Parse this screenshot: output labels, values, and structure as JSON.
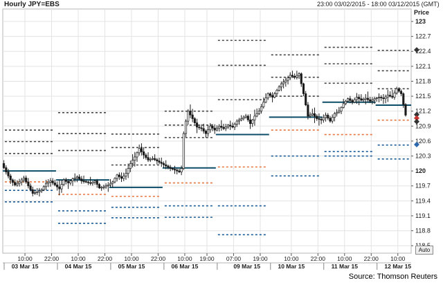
{
  "header": {
    "title": "Hourly JPY=EBS",
    "range": "23:00 03/02/2015 - 18:00 03/12/2015 (GMT)"
  },
  "price_axis_label": "Price",
  "auto_label": "Auto",
  "source": "Source: Thomson Reuters",
  "colors": {
    "background": "#ffffff",
    "grid": "#e3e3e3",
    "candle": "#1a1a1a",
    "pivot": "#0b4d66",
    "resistance": "#444444",
    "support_blue": "#1b5c96",
    "support_orange": "#e8743b",
    "marker_red": "#c9332c",
    "marker_blue": "#2b68ae",
    "marker_dark": "#333333"
  },
  "chart_data": {
    "type": "line",
    "series_style": "hourly candlestick with daily pivot-point levels",
    "title": "Hourly JPY=EBS",
    "ylabel": "Price",
    "ylim": [
      118.35,
      123.25
    ],
    "grid": true,
    "y_ticks": [
      "118.5",
      "118.8",
      "119.1",
      "119.4",
      "119.7",
      "120",
      "120.3",
      "120.6",
      "120.9",
      "121.2",
      "121.5",
      "121.8",
      "122.1",
      "122.4",
      "122.7",
      "123"
    ],
    "y_ticks_bold": [
      "120",
      "123"
    ],
    "x_ticks": [
      {
        "h": 10,
        "label": "10:00"
      },
      {
        "h": 22,
        "label": "22:00"
      },
      {
        "h": 34,
        "label": "10:00"
      },
      {
        "h": 46,
        "label": "22:00"
      },
      {
        "h": 58,
        "label": "10:00"
      },
      {
        "h": 70,
        "label": "22:00"
      },
      {
        "h": 82,
        "label": "10:00"
      },
      {
        "h": 92,
        "label": "19:00"
      },
      {
        "h": 104,
        "label": "07:00"
      },
      {
        "h": 116,
        "label": "19:00"
      },
      {
        "h": 130,
        "label": "10:00"
      },
      {
        "h": 142,
        "label": "22:00"
      },
      {
        "h": 154,
        "label": "10:00"
      },
      {
        "h": 166,
        "label": "22:00"
      },
      {
        "h": 178,
        "label": "10:00"
      }
    ],
    "day_labels": [
      {
        "h": 10,
        "label": "03 Mar 15"
      },
      {
        "h": 34,
        "label": "04 Mar 15"
      },
      {
        "h": 58,
        "label": "05 Mar 15"
      },
      {
        "h": 82,
        "label": "06 Mar 15"
      },
      {
        "h": 110,
        "label": "09 Mar 15"
      },
      {
        "h": 130,
        "label": "10 Mar 15"
      },
      {
        "h": 154,
        "label": "11 Mar 15"
      },
      {
        "h": 178,
        "label": "12 Mar 15"
      }
    ],
    "close_path": [
      [
        0,
        120.15
      ],
      [
        2,
        119.98
      ],
      [
        4,
        119.82
      ],
      [
        6,
        119.72
      ],
      [
        8,
        119.78
      ],
      [
        10,
        119.86
      ],
      [
        12,
        119.7
      ],
      [
        14,
        119.55
      ],
      [
        16,
        119.58
      ],
      [
        18,
        119.62
      ],
      [
        20,
        119.75
      ],
      [
        22,
        119.8
      ],
      [
        24,
        119.72
      ],
      [
        26,
        119.64
      ],
      [
        28,
        119.82
      ],
      [
        30,
        119.76
      ],
      [
        32,
        119.84
      ],
      [
        34,
        119.88
      ],
      [
        36,
        119.8
      ],
      [
        38,
        119.78
      ],
      [
        40,
        119.75
      ],
      [
        42,
        119.8
      ],
      [
        44,
        119.66
      ],
      [
        46,
        119.68
      ],
      [
        48,
        119.72
      ],
      [
        50,
        119.78
      ],
      [
        52,
        119.92
      ],
      [
        54,
        119.85
      ],
      [
        56,
        119.95
      ],
      [
        58,
        120.15
      ],
      [
        60,
        120.28
      ],
      [
        62,
        120.45
      ],
      [
        64,
        120.32
      ],
      [
        66,
        120.22
      ],
      [
        68,
        120.25
      ],
      [
        70,
        120.2
      ],
      [
        72,
        120.15
      ],
      [
        74,
        120.1
      ],
      [
        76,
        120.05
      ],
      [
        78,
        120.02
      ],
      [
        80,
        119.98
      ],
      [
        81,
        120.05
      ],
      [
        82,
        120.75
      ],
      [
        83,
        121.0
      ],
      [
        84,
        121.2
      ],
      [
        86,
        121.05
      ],
      [
        88,
        120.88
      ],
      [
        90,
        120.85
      ],
      [
        92,
        120.75
      ],
      [
        94,
        120.9
      ],
      [
        96,
        120.82
      ],
      [
        98,
        120.9
      ],
      [
        100,
        120.85
      ],
      [
        102,
        120.92
      ],
      [
        104,
        120.88
      ],
      [
        106,
        121.0
      ],
      [
        108,
        121.05
      ],
      [
        110,
        121.1
      ],
      [
        112,
        120.95
      ],
      [
        114,
        121.1
      ],
      [
        116,
        121.2
      ],
      [
        118,
        121.38
      ],
      [
        120,
        121.55
      ],
      [
        122,
        121.48
      ],
      [
        124,
        121.62
      ],
      [
        126,
        121.75
      ],
      [
        128,
        121.82
      ],
      [
        130,
        121.92
      ],
      [
        132,
        121.88
      ],
      [
        134,
        121.95
      ],
      [
        136,
        121.55
      ],
      [
        138,
        121.1
      ],
      [
        140,
        121.15
      ],
      [
        142,
        121.05
      ],
      [
        144,
        121.02
      ],
      [
        146,
        121.12
      ],
      [
        148,
        121.0
      ],
      [
        150,
        121.15
      ],
      [
        152,
        121.2
      ],
      [
        154,
        121.35
      ],
      [
        156,
        121.45
      ],
      [
        158,
        121.38
      ],
      [
        160,
        121.48
      ],
      [
        162,
        121.42
      ],
      [
        164,
        121.46
      ],
      [
        166,
        121.4
      ],
      [
        168,
        121.45
      ],
      [
        170,
        121.48
      ],
      [
        172,
        121.45
      ],
      [
        174,
        121.52
      ],
      [
        176,
        121.48
      ],
      [
        178,
        121.65
      ],
      [
        180,
        121.55
      ],
      [
        182,
        121.12
      ]
    ],
    "pivot_levels": [
      {
        "start": 0,
        "end": 24,
        "pivot": 120.0,
        "r": [
          120.35,
          120.59,
          120.82
        ],
        "s_blue": [
          119.38,
          119.61
        ],
        "s_orange": [
          119.78
        ]
      },
      {
        "start": 24,
        "end": 48,
        "pivot": 119.82,
        "r": [
          120.41,
          120.75,
          121.17
        ],
        "s_blue": [
          118.95,
          119.2
        ],
        "s_orange": [
          119.53
        ]
      },
      {
        "start": 48,
        "end": 72,
        "pivot": 119.67,
        "r": [
          120.12,
          120.47,
          120.74
        ],
        "s_blue": [
          119.27,
          119.06
        ],
        "s_orange": [
          119.49
        ]
      },
      {
        "start": 72,
        "end": 96,
        "pivot": 120.06,
        "r": [
          120.67,
          120.92,
          121.2
        ],
        "s_blue": [
          119.3,
          119.07
        ],
        "s_orange": [
          119.76
        ]
      },
      {
        "start": 96,
        "end": 120,
        "pivot": 120.73,
        "r": [
          121.43,
          122.12,
          122.62
        ],
        "s_blue": [
          119.3,
          118.72
        ],
        "s_orange": [
          120.08
        ]
      },
      {
        "start": 120,
        "end": 144,
        "pivot": 121.08,
        "r": [
          121.5,
          121.88,
          122.33
        ],
        "s_blue": [
          120.3,
          119.9
        ],
        "s_orange": [
          120.82
        ]
      },
      {
        "start": 144,
        "end": 168,
        "pivot": 121.38,
        "r": [
          121.76,
          122.15,
          122.48
        ],
        "s_blue": [
          120.3,
          120.39
        ],
        "s_orange": [
          120.73
        ]
      },
      {
        "start": 168,
        "end": 184,
        "pivot": 121.32,
        "r": [
          121.65,
          122.01,
          122.42
        ],
        "s_blue": [
          120.52,
          120.24
        ],
        "s_orange": [
          121.02
        ]
      }
    ],
    "right_markers": [
      {
        "price": 122.43,
        "color": "marker_dark"
      },
      {
        "price": 121.13,
        "color": "marker_dark"
      },
      {
        "price": 121.06,
        "color": "marker_red"
      },
      {
        "price": 120.99,
        "color": "marker_dark"
      },
      {
        "price": 120.53,
        "color": "marker_blue"
      }
    ]
  }
}
